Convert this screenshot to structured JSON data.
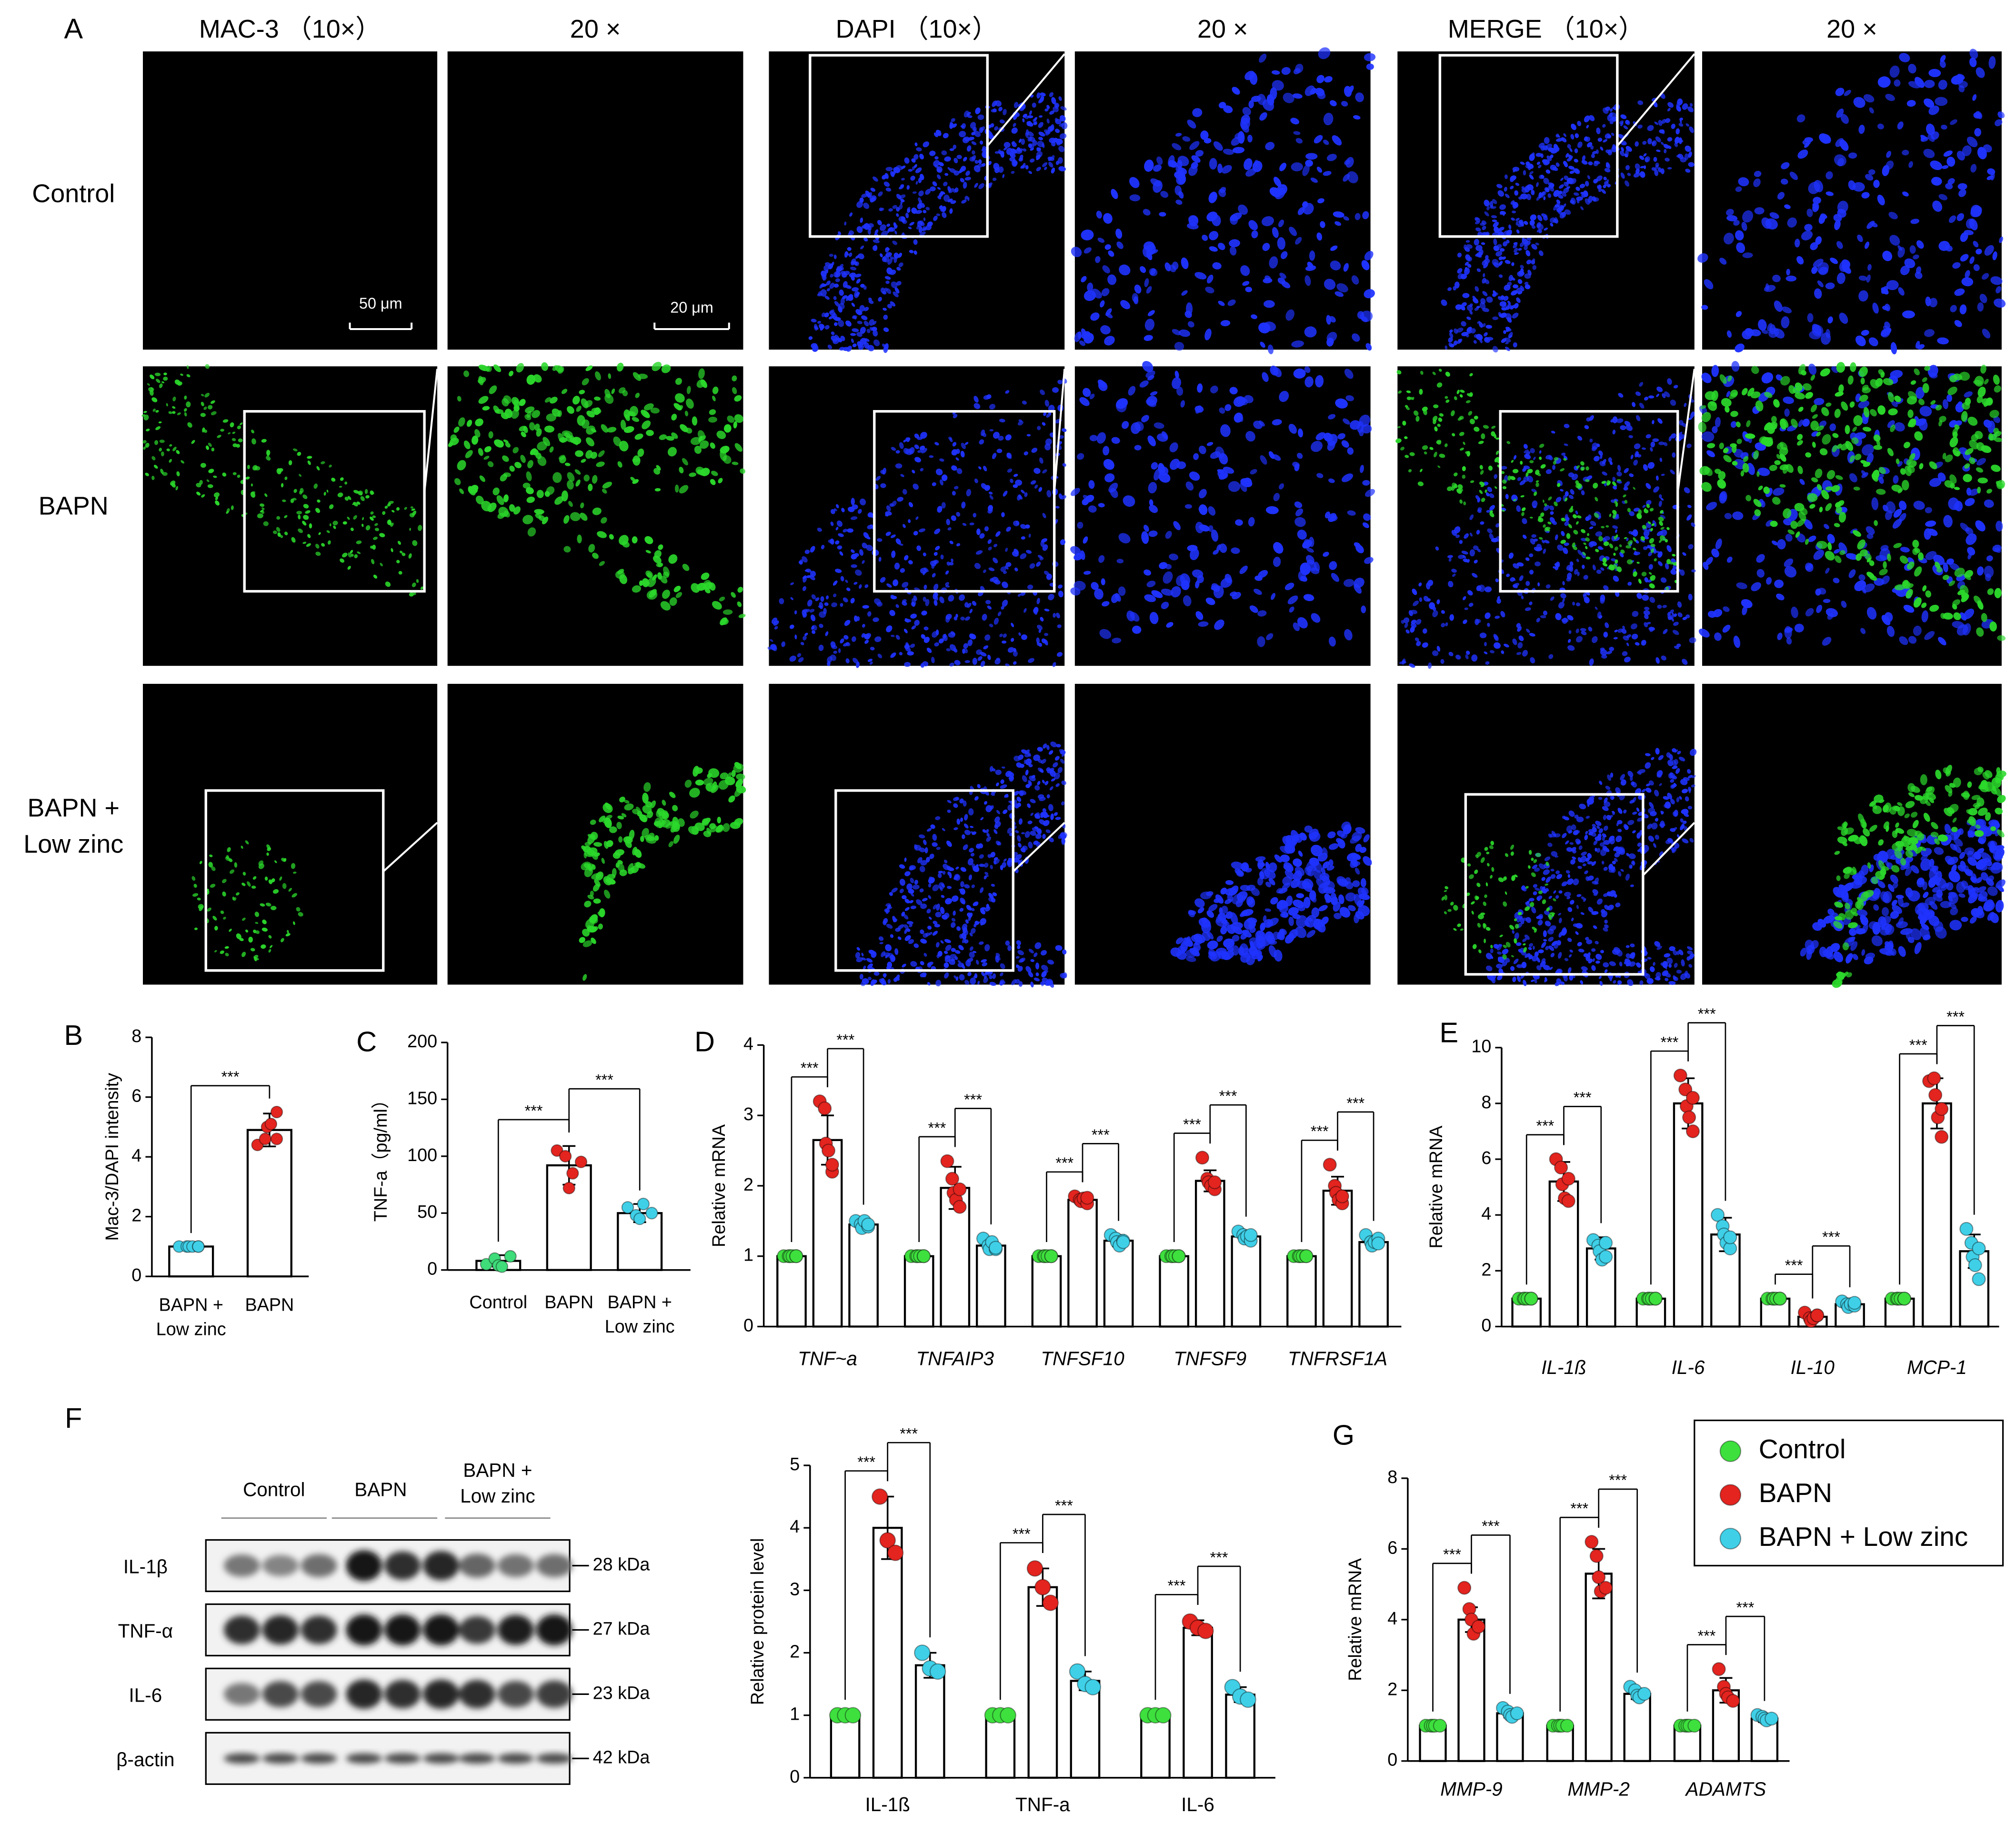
{
  "figure_a": {
    "label": "A",
    "columns": [
      "MAC-3 （10×）",
      "20 ×",
      "DAPI （10×）",
      "20 ×",
      "MERGE （10×）",
      "20 ×"
    ],
    "rows": [
      [
        "Control"
      ],
      [
        "BAPN"
      ],
      [
        "BAPN +",
        "Low zinc"
      ]
    ],
    "scale_bars": [
      "50 μm",
      "20 μm"
    ]
  },
  "figure_f_blot": {
    "label": "F",
    "groups": [
      [
        "Control"
      ],
      [
        "BAPN"
      ],
      [
        "BAPN +",
        "Low zinc"
      ]
    ],
    "bands": [
      {
        "name": "IL-1β",
        "size": "28 kDa"
      },
      {
        "name": "TNF-α",
        "size": "27 kDa"
      },
      {
        "name": "IL-6",
        "size": "23 kDa"
      },
      {
        "name": "β-actin",
        "size": "42 kDa"
      }
    ]
  },
  "chart_data": [
    {
      "type": "bar",
      "label": "B",
      "ylabel": "Mac-3/DAPI intensity",
      "categories": [
        [
          "BAPN +",
          "Low zinc"
        ],
        [
          "BAPN"
        ]
      ],
      "values": [
        1,
        4.9
      ],
      "errors": [
        0,
        0.55
      ],
      "colors": [
        "#3fd0e8",
        "#e3241f"
      ],
      "points": [
        [
          1,
          1,
          1,
          1,
          1,
          1
        ],
        [
          4.4,
          4.6,
          5.0,
          5.1,
          5.5,
          4.6
        ]
      ],
      "ylim": [
        0,
        8
      ],
      "yticks": [
        0,
        2,
        4,
        6,
        8
      ],
      "significance": "***"
    },
    {
      "type": "bar",
      "label": "C",
      "ylabel": "TNF-a（pg/ml）",
      "categories": [
        [
          "Control"
        ],
        [
          "BAPN"
        ],
        [
          "BAPN +",
          "Low zinc"
        ]
      ],
      "values": [
        8,
        92,
        50
      ],
      "errors": [
        5,
        17,
        8
      ],
      "colors": [
        "#3fdc7a",
        "#e3241f",
        "#3fd0e8"
      ],
      "points": [
        [
          5,
          10,
          4,
          3,
          12
        ],
        [
          105,
          100,
          72,
          85,
          95
        ],
        [
          55,
          48,
          45,
          58,
          50
        ]
      ],
      "ylim": [
        0,
        200
      ],
      "yticks": [
        0,
        50,
        100,
        150,
        200
      ],
      "significance": "***"
    },
    {
      "type": "grouped_bar",
      "label": "D",
      "ylabel": "Relative mRNA",
      "category_style": "italic",
      "categories": [
        "TNF~a",
        "TNFAIP3",
        "TNFSF10",
        "TNFSF9",
        "TNFRSF1A"
      ],
      "series": [
        {
          "color": "#3ee03e",
          "values": [
            1,
            1,
            1,
            1,
            1
          ],
          "errors": [
            0,
            0,
            0,
            0,
            0
          ],
          "points": [
            [
              1,
              1,
              1,
              1,
              1,
              1
            ],
            [
              1,
              1,
              1,
              1,
              1,
              1
            ],
            [
              1,
              1,
              1,
              1,
              1,
              1
            ],
            [
              1,
              1,
              1,
              1,
              1,
              1
            ],
            [
              1,
              1,
              1,
              1,
              1,
              1
            ]
          ]
        },
        {
          "color": "#e3241f",
          "values": [
            2.65,
            1.97,
            1.8,
            2.07,
            1.93
          ],
          "errors": [
            0.35,
            0.3,
            0.05,
            0.15,
            0.2
          ],
          "points": [
            [
              3.2,
              3.1,
              2.6,
              2.5,
              2.2,
              2.3
            ],
            [
              2.35,
              2.1,
              1.9,
              1.8,
              1.7,
              1.95
            ],
            [
              1.85,
              1.8,
              1.78,
              1.82,
              1.75,
              1.83
            ],
            [
              2.4,
              2.1,
              2.05,
              2.0,
              1.95,
              2.05
            ],
            [
              2.3,
              2.0,
              1.9,
              1.8,
              1.75,
              1.85
            ]
          ]
        },
        {
          "color": "#3fd0e8",
          "values": [
            1.45,
            1.15,
            1.22,
            1.28,
            1.2
          ],
          "errors": [
            0.08,
            0.08,
            0.08,
            0.08,
            0.08
          ],
          "points": [
            [
              1.5,
              1.45,
              1.4,
              1.5,
              1.42,
              1.45
            ],
            [
              1.25,
              1.15,
              1.1,
              1.2,
              1.1,
              1.12
            ],
            [
              1.3,
              1.25,
              1.2,
              1.15,
              1.22,
              1.2
            ],
            [
              1.35,
              1.3,
              1.25,
              1.28,
              1.22,
              1.3
            ],
            [
              1.3,
              1.2,
              1.15,
              1.2,
              1.25,
              1.18
            ]
          ]
        }
      ],
      "ylim": [
        0,
        4
      ],
      "yticks": [
        0,
        1,
        2,
        3,
        4
      ],
      "significance": "***"
    },
    {
      "type": "grouped_bar",
      "label": "E",
      "ylabel": "Relative mRNA",
      "category_style": "italic",
      "categories": [
        "IL-1ß",
        "IL-6",
        "IL-10",
        "MCP-1"
      ],
      "series": [
        {
          "color": "#3ee03e",
          "values": [
            1,
            1,
            1,
            1
          ],
          "errors": [
            0,
            0,
            0,
            0
          ],
          "points": [
            [
              1,
              1,
              1,
              1,
              1,
              1
            ],
            [
              1,
              1,
              1,
              1,
              1,
              1
            ],
            [
              1,
              1,
              1,
              1,
              1,
              1
            ],
            [
              1,
              1,
              1,
              1,
              1,
              1
            ]
          ]
        },
        {
          "color": "#e3241f",
          "values": [
            5.2,
            8.0,
            0.35,
            8.0
          ],
          "errors": [
            0.7,
            0.9,
            0.15,
            0.9
          ],
          "points": [
            [
              6.0,
              5.7,
              5.1,
              4.6,
              4.5,
              5.3
            ],
            [
              9.0,
              8.5,
              7.9,
              7.5,
              7.0,
              8.2
            ],
            [
              0.5,
              0.3,
              0.2,
              0.3,
              0.4,
              0.4
            ],
            [
              8.8,
              8.9,
              8.3,
              7.5,
              6.8,
              7.8
            ]
          ]
        },
        {
          "color": "#3fd0e8",
          "values": [
            2.8,
            3.3,
            0.8,
            2.7
          ],
          "errors": [
            0.4,
            0.6,
            0.1,
            0.6
          ],
          "points": [
            [
              3.1,
              2.9,
              2.7,
              2.4,
              2.5,
              3.0
            ],
            [
              4.0,
              3.6,
              3.3,
              3.0,
              2.8,
              3.2
            ],
            [
              0.9,
              0.8,
              0.7,
              0.8,
              0.75,
              0.85
            ],
            [
              3.5,
              3.0,
              2.5,
              2.2,
              1.7,
              2.8
            ]
          ]
        }
      ],
      "ylim": [
        0,
        10
      ],
      "yticks": [
        0,
        2,
        4,
        6,
        8,
        10
      ],
      "significance": "***"
    },
    {
      "type": "grouped_bar",
      "ylabel": "Relative protein level",
      "categories": [
        "IL-1ß",
        "TNF-a",
        "IL-6"
      ],
      "series": [
        {
          "color": "#3ee03e",
          "values": [
            1,
            1,
            1
          ],
          "errors": [
            0,
            0,
            0
          ],
          "points": [
            [
              1,
              1,
              1
            ],
            [
              1,
              1,
              1
            ],
            [
              1,
              1,
              1
            ]
          ]
        },
        {
          "color": "#e3241f",
          "values": [
            4.0,
            3.05,
            2.4
          ],
          "errors": [
            0.5,
            0.3,
            0.12
          ],
          "points": [
            [
              4.5,
              3.8,
              3.6
            ],
            [
              3.35,
              3.05,
              2.8
            ],
            [
              2.5,
              2.4,
              2.35
            ]
          ]
        },
        {
          "color": "#3fd0e8",
          "values": [
            1.8,
            1.55,
            1.33
          ],
          "errors": [
            0.2,
            0.15,
            0.12
          ],
          "points": [
            [
              2.0,
              1.75,
              1.7
            ],
            [
              1.7,
              1.5,
              1.45
            ],
            [
              1.45,
              1.3,
              1.25
            ]
          ]
        }
      ],
      "ylim": [
        0,
        5
      ],
      "yticks": [
        0,
        1,
        2,
        3,
        4,
        5
      ],
      "significance": "***"
    },
    {
      "type": "grouped_bar",
      "label": "G",
      "ylabel": "Relative mRNA",
      "category_style": "italic",
      "categories": [
        "MMP-9",
        "MMP-2",
        "ADAMTS"
      ],
      "legend": true,
      "series": [
        {
          "name": "Control",
          "color": "#3ee03e",
          "values": [
            1,
            1,
            1
          ],
          "errors": [
            0,
            0,
            0
          ],
          "points": [
            [
              1,
              1,
              1,
              1,
              1
            ],
            [
              1,
              1,
              1,
              1,
              1
            ],
            [
              1,
              1,
              1,
              1,
              1
            ]
          ]
        },
        {
          "name": "BAPN",
          "color": "#e3241f",
          "values": [
            4.0,
            5.3,
            2.0
          ],
          "errors": [
            0.35,
            0.7,
            0.35
          ],
          "points": [
            [
              4.9,
              4.3,
              4.0,
              3.6,
              3.8
            ],
            [
              6.2,
              5.8,
              5.2,
              4.8,
              4.9
            ],
            [
              2.6,
              2.1,
              1.9,
              1.8,
              1.7
            ]
          ]
        },
        {
          "name": "BAPN + Low zinc",
          "color": "#3fd0e8",
          "values": [
            1.35,
            1.9,
            1.2
          ],
          "errors": [
            0.12,
            0.15,
            0.1
          ],
          "points": [
            [
              1.5,
              1.4,
              1.3,
              1.25,
              1.35
            ],
            [
              2.1,
              2.0,
              1.85,
              1.8,
              1.9
            ],
            [
              1.3,
              1.25,
              1.2,
              1.15,
              1.2
            ]
          ]
        }
      ],
      "ylim": [
        0,
        8
      ],
      "yticks": [
        0,
        2,
        4,
        6,
        8
      ],
      "significance": "***"
    }
  ]
}
